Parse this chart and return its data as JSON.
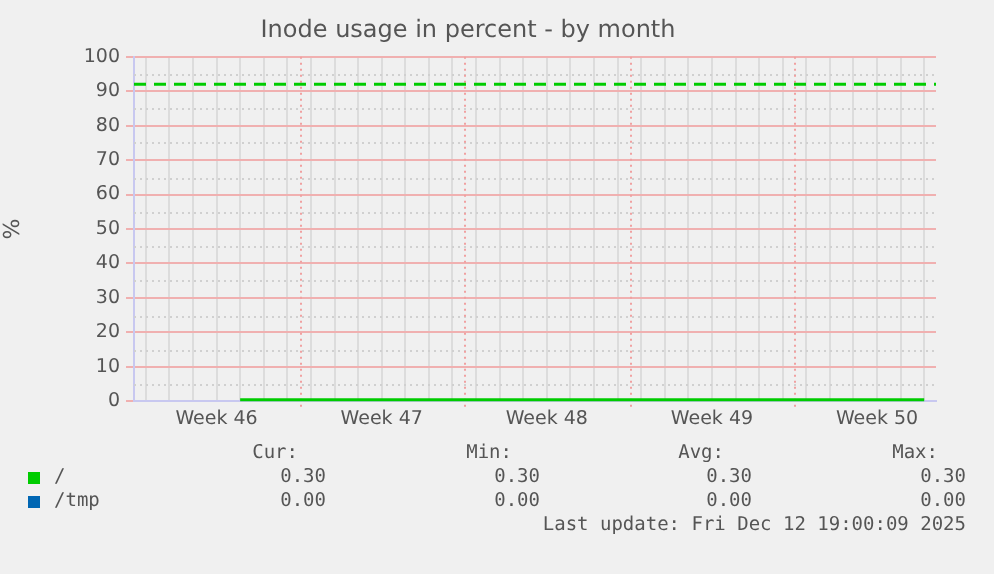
{
  "chart_data": {
    "type": "line",
    "title": "Inode usage in percent - by month",
    "ylabel": "%",
    "categories": [
      null,
      null,
      null,
      "Week 46",
      null,
      null,
      null,
      null,
      null,
      null,
      "Week 47",
      null,
      null,
      null,
      null,
      null,
      null,
      "Week 48",
      null,
      null,
      null,
      null,
      null,
      null,
      "Week 49",
      null,
      null,
      null,
      null,
      null,
      null,
      "Week 50",
      null,
      null
    ],
    "series": [
      {
        "name": "/",
        "color": "#00cc00",
        "values": [
          null,
          null,
          null,
          null,
          0.3,
          0.3,
          0.3,
          0.3,
          0.3,
          0.3,
          0.3,
          0.3,
          0.3,
          0.3,
          0.3,
          0.3,
          0.3,
          0.3,
          0.3,
          0.3,
          0.3,
          0.3,
          0.3,
          0.3,
          0.3,
          0.3,
          0.3,
          0.3,
          0.3,
          0.3,
          0.3,
          0.3,
          0.3,
          0.3
        ]
      },
      {
        "name": "/tmp",
        "color": "#0066b3",
        "values": [
          null,
          null,
          null,
          null,
          null,
          null,
          null,
          null,
          null,
          null,
          null,
          null,
          null,
          null,
          null,
          null,
          null,
          null,
          null,
          null,
          null,
          null,
          null,
          null,
          null,
          null,
          null,
          null,
          null,
          null,
          null,
          null,
          null,
          null
        ]
      }
    ],
    "ylim": [
      0,
      100
    ],
    "yticks": [
      0,
      10,
      20,
      30,
      40,
      50,
      60,
      70,
      80,
      90,
      100
    ],
    "ref_lines": [
      {
        "axis": "y",
        "value": 92,
        "color": "#00cc00",
        "line_style": "dashed"
      }
    ],
    "grid": true,
    "legend": "bottom",
    "marker": "none",
    "line_style": "solid",
    "annotations": [
      "Cur:",
      "Min:",
      "Avg:",
      "Max:",
      "0.30",
      "0.30",
      "0.30",
      "0.30",
      "0.00",
      "0.00",
      "0.00",
      "0.00",
      "Last update: Fri Dec 12 19:00:09 2025"
    ]
  }
}
